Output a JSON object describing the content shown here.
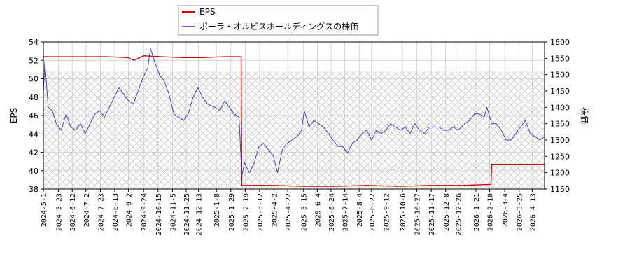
{
  "chart_data": {
    "type": "line",
    "legend": {
      "placement": "top",
      "entries": [
        "EPS",
        "ポーラ・オルビスホールディングスの株価"
      ]
    },
    "ylabel_left": "EPS",
    "ylabel_right": "株価",
    "ylim_left": [
      38,
      54
    ],
    "ylim_right": [
      1150,
      1600
    ],
    "yticks_left": [
      38,
      40,
      42,
      44,
      46,
      48,
      50,
      52,
      54
    ],
    "yticks_right": [
      1150,
      1200,
      1250,
      1300,
      1350,
      1400,
      1450,
      1500,
      1550,
      1600
    ],
    "xlim": [
      "2024-05-01",
      "2026-05-01"
    ],
    "xticks": [
      "2024-5-1",
      "2024-5-23",
      "2024-6-12",
      "2024-7-2",
      "2024-7-23",
      "2024-8-13",
      "2024-9-2",
      "2024-9-24",
      "2024-10-15",
      "2024-11-5",
      "2024-11-25",
      "2024-12-13",
      "2025-1-8",
      "2025-1-29",
      "2025-2-19",
      "2025-3-12",
      "2025-4-2",
      "2025-4-22",
      "2025-5-15",
      "2025-6-4",
      "2025-6-24",
      "2025-7-14",
      "2025-8-4",
      "2025-8-22",
      "2025-9-12",
      "2025-10-6",
      "2025-10-27",
      "2025-11-17",
      "2025-12-8",
      "2025-12-26",
      "2026-1-21",
      "2026-2-10",
      "2026-3-4",
      "2026-3-25",
      "2026-4-13"
    ],
    "hatched_region_right": [
      1150,
      1510
    ],
    "grid": true,
    "colors": {
      "eps": "#cc0000",
      "price": "#3333cc"
    },
    "series": [
      {
        "name": "EPS",
        "axis": "left",
        "points": [
          [
            "2024-05-01",
            52.4
          ],
          [
            "2024-06-01",
            52.4
          ],
          [
            "2024-07-01",
            52.4
          ],
          [
            "2024-08-01",
            52.4
          ],
          [
            "2024-09-01",
            52.3
          ],
          [
            "2024-09-10",
            52.0
          ],
          [
            "2024-09-24",
            52.5
          ],
          [
            "2024-10-20",
            52.4
          ],
          [
            "2024-11-20",
            52.3
          ],
          [
            "2024-12-20",
            52.3
          ],
          [
            "2025-01-20",
            52.4
          ],
          [
            "2025-02-13",
            52.4
          ],
          [
            "2025-02-14",
            38.4
          ],
          [
            "2025-04-01",
            38.4
          ],
          [
            "2025-05-15",
            38.3
          ],
          [
            "2025-07-01",
            38.3
          ],
          [
            "2025-08-15",
            38.4
          ],
          [
            "2025-10-01",
            38.3
          ],
          [
            "2025-11-15",
            38.4
          ],
          [
            "2026-01-01",
            38.4
          ],
          [
            "2026-02-12",
            38.5
          ],
          [
            "2026-02-13",
            40.7
          ],
          [
            "2026-05-01",
            40.7
          ]
        ]
      },
      {
        "name": "ポーラ・オルビスホールディングスの株価",
        "axis": "right",
        "points": [
          [
            "2024-05-01",
            1440
          ],
          [
            "2024-05-03",
            1540
          ],
          [
            "2024-05-08",
            1400
          ],
          [
            "2024-05-14",
            1390
          ],
          [
            "2024-05-20",
            1350
          ],
          [
            "2024-05-27",
            1330
          ],
          [
            "2024-06-03",
            1380
          ],
          [
            "2024-06-10",
            1340
          ],
          [
            "2024-06-17",
            1330
          ],
          [
            "2024-06-24",
            1350
          ],
          [
            "2024-07-01",
            1320
          ],
          [
            "2024-07-08",
            1350
          ],
          [
            "2024-07-15",
            1380
          ],
          [
            "2024-07-22",
            1390
          ],
          [
            "2024-07-29",
            1370
          ],
          [
            "2024-08-05",
            1400
          ],
          [
            "2024-08-12",
            1430
          ],
          [
            "2024-08-19",
            1460
          ],
          [
            "2024-08-26",
            1440
          ],
          [
            "2024-09-02",
            1420
          ],
          [
            "2024-09-09",
            1410
          ],
          [
            "2024-09-16",
            1450
          ],
          [
            "2024-09-23",
            1490
          ],
          [
            "2024-09-30",
            1520
          ],
          [
            "2024-10-04",
            1580
          ],
          [
            "2024-10-10",
            1540
          ],
          [
            "2024-10-17",
            1500
          ],
          [
            "2024-10-24",
            1480
          ],
          [
            "2024-10-31",
            1440
          ],
          [
            "2024-11-07",
            1380
          ],
          [
            "2024-11-14",
            1370
          ],
          [
            "2024-11-21",
            1360
          ],
          [
            "2024-11-28",
            1380
          ],
          [
            "2024-12-05",
            1430
          ],
          [
            "2024-12-12",
            1460
          ],
          [
            "2024-12-19",
            1430
          ],
          [
            "2024-12-26",
            1410
          ],
          [
            "2025-01-06",
            1400
          ],
          [
            "2025-01-13",
            1390
          ],
          [
            "2025-01-20",
            1420
          ],
          [
            "2025-01-27",
            1400
          ],
          [
            "2025-02-03",
            1380
          ],
          [
            "2025-02-10",
            1370
          ],
          [
            "2025-02-14",
            1190
          ],
          [
            "2025-02-18",
            1230
          ],
          [
            "2025-02-25",
            1200
          ],
          [
            "2025-03-04",
            1230
          ],
          [
            "2025-03-11",
            1280
          ],
          [
            "2025-03-18",
            1290
          ],
          [
            "2025-03-25",
            1270
          ],
          [
            "2025-04-01",
            1250
          ],
          [
            "2025-04-07",
            1200
          ],
          [
            "2025-04-14",
            1270
          ],
          [
            "2025-04-21",
            1290
          ],
          [
            "2025-04-28",
            1300
          ],
          [
            "2025-05-05",
            1310
          ],
          [
            "2025-05-12",
            1330
          ],
          [
            "2025-05-16",
            1390
          ],
          [
            "2025-05-23",
            1340
          ],
          [
            "2025-05-30",
            1360
          ],
          [
            "2025-06-06",
            1350
          ],
          [
            "2025-06-13",
            1340
          ],
          [
            "2025-06-20",
            1320
          ],
          [
            "2025-06-27",
            1300
          ],
          [
            "2025-07-04",
            1280
          ],
          [
            "2025-07-11",
            1280
          ],
          [
            "2025-07-18",
            1260
          ],
          [
            "2025-07-25",
            1290
          ],
          [
            "2025-08-01",
            1300
          ],
          [
            "2025-08-08",
            1320
          ],
          [
            "2025-08-15",
            1330
          ],
          [
            "2025-08-22",
            1300
          ],
          [
            "2025-08-29",
            1330
          ],
          [
            "2025-09-05",
            1320
          ],
          [
            "2025-09-12",
            1330
          ],
          [
            "2025-09-19",
            1350
          ],
          [
            "2025-09-26",
            1340
          ],
          [
            "2025-10-03",
            1330
          ],
          [
            "2025-10-10",
            1340
          ],
          [
            "2025-10-17",
            1320
          ],
          [
            "2025-10-24",
            1350
          ],
          [
            "2025-10-31",
            1330
          ],
          [
            "2025-11-07",
            1320
          ],
          [
            "2025-11-14",
            1340
          ],
          [
            "2025-11-21",
            1340
          ],
          [
            "2025-11-28",
            1340
          ],
          [
            "2025-12-05",
            1330
          ],
          [
            "2025-12-12",
            1330
          ],
          [
            "2025-12-19",
            1340
          ],
          [
            "2025-12-26",
            1330
          ],
          [
            "2026-01-05",
            1350
          ],
          [
            "2026-01-12",
            1360
          ],
          [
            "2026-01-19",
            1380
          ],
          [
            "2026-01-26",
            1380
          ],
          [
            "2026-02-02",
            1370
          ],
          [
            "2026-02-06",
            1400
          ],
          [
            "2026-02-13",
            1350
          ],
          [
            "2026-02-20",
            1350
          ],
          [
            "2026-02-27",
            1330
          ],
          [
            "2026-03-06",
            1300
          ],
          [
            "2026-03-13",
            1300
          ],
          [
            "2026-03-20",
            1320
          ],
          [
            "2026-03-27",
            1340
          ],
          [
            "2026-04-03",
            1360
          ],
          [
            "2026-04-10",
            1320
          ],
          [
            "2026-04-17",
            1310
          ],
          [
            "2026-04-24",
            1300
          ],
          [
            "2026-05-01",
            1310
          ]
        ]
      }
    ]
  }
}
